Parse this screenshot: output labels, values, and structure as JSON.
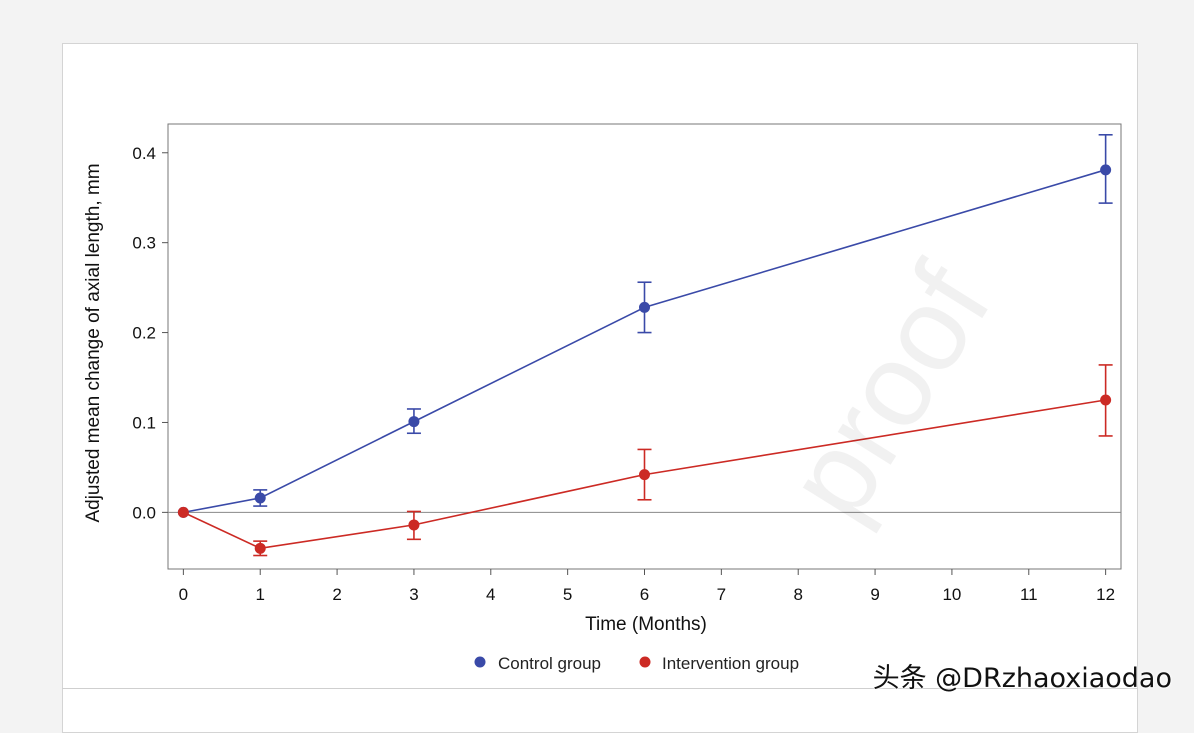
{
  "watermark": {
    "proof_text": "proof",
    "credit_text": "头条 @DRzhaoxiaodao"
  },
  "colors": {
    "control": "#3a4aa8",
    "intervention": "#cc2a24",
    "zero_line": "#888888",
    "axis": "#555555"
  },
  "chart_data": {
    "type": "line",
    "title": "",
    "xlabel": "Time (Months)",
    "ylabel": "Adjusted mean change of axial length, mm",
    "x_ticks": [
      0,
      1,
      2,
      3,
      4,
      5,
      6,
      7,
      8,
      9,
      10,
      11,
      12
    ],
    "y_ticks": [
      0.0,
      0.1,
      0.2,
      0.3,
      0.4
    ],
    "y_tick_labels": [
      "0.0",
      "0.1",
      "0.2",
      "0.3",
      "0.4"
    ],
    "xlim": [
      -0.2,
      12.2
    ],
    "ylim": [
      -0.063,
      0.432
    ],
    "reference_line_y": 0.0,
    "legend_position": "bottom-center",
    "series": [
      {
        "name": "Control group",
        "color": "#3a4aa8",
        "x": [
          0,
          1,
          3,
          6,
          12
        ],
        "y": [
          0.0,
          0.016,
          0.101,
          0.228,
          0.381
        ],
        "err_low": [
          0.0,
          0.007,
          0.088,
          0.2,
          0.344
        ],
        "err_high": [
          0.0,
          0.025,
          0.115,
          0.256,
          0.42
        ]
      },
      {
        "name": "Intervention group",
        "color": "#cc2a24",
        "x": [
          0,
          1,
          3,
          6,
          12
        ],
        "y": [
          0.0,
          -0.04,
          -0.014,
          0.042,
          0.125
        ],
        "err_low": [
          0.0,
          -0.048,
          -0.03,
          0.014,
          0.085
        ],
        "err_high": [
          0.0,
          -0.032,
          0.001,
          0.07,
          0.164
        ]
      }
    ]
  }
}
